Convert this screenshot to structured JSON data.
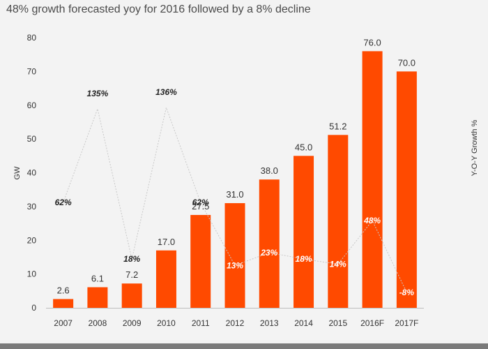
{
  "chart_data": {
    "type": "bar",
    "title": "48% growth forecasted yoy for 2016  followed by a 8% decline",
    "ylabel": "GW",
    "y2label": "Y-O-Y Growth %",
    "ylim": [
      0,
      80
    ],
    "yticks": [
      0,
      10,
      20,
      30,
      40,
      50,
      60,
      70,
      80
    ],
    "categories": [
      "2007",
      "2008",
      "2009",
      "2010",
      "2011",
      "2012",
      "2013",
      "2014",
      "2015",
      "2016F",
      "2017F"
    ],
    "values": [
      2.6,
      6.1,
      7.2,
      17.0,
      27.5,
      31.0,
      38.0,
      45.0,
      51.2,
      76.0,
      70.0
    ],
    "value_labels": [
      "2.6",
      "6.1",
      "7.2",
      "17.0",
      "27.5",
      "31.0",
      "38.0",
      "45.0",
      "51.2",
      "76.0",
      "70.0"
    ],
    "growth_series": {
      "name": "Y-O-Y Growth %",
      "values": [
        62,
        135,
        18,
        136,
        62,
        13,
        23,
        18,
        14,
        48,
        -8
      ],
      "labels": [
        "62%",
        "135%",
        "18%",
        "136%",
        "62%",
        "13%",
        "23%",
        "18%",
        "14%",
        "48%",
        "-8%"
      ]
    },
    "colors": {
      "bar": "#ff4a00",
      "line": "#c8c8c8",
      "axis": "#bdbdbd"
    }
  }
}
